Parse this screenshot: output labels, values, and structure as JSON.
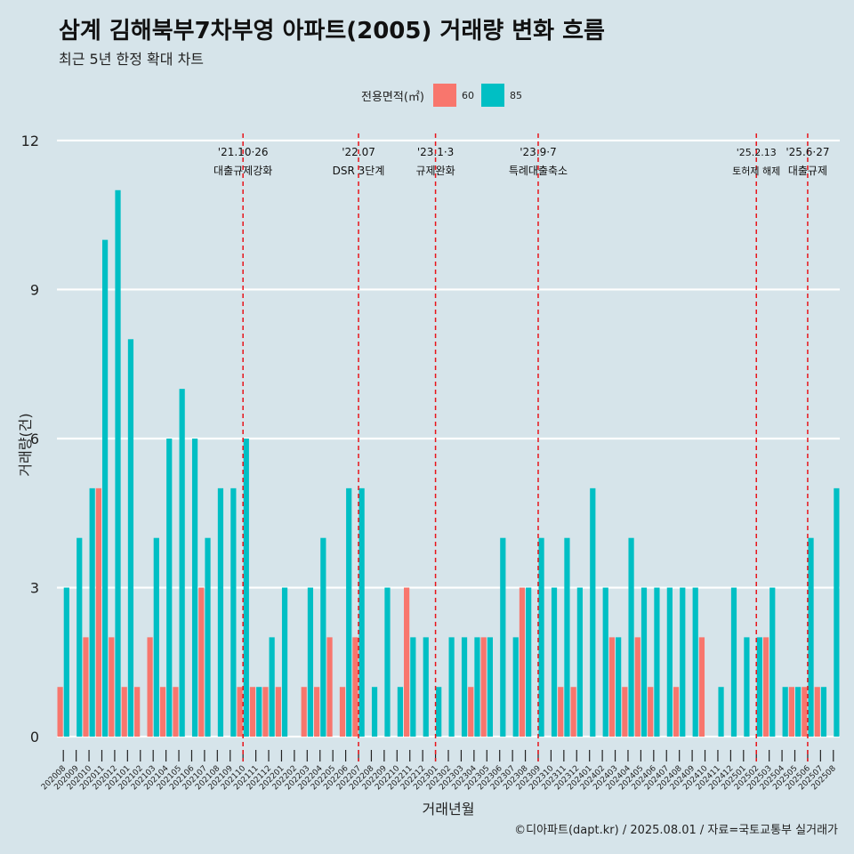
{
  "title": "삼계 김해북부7차부영 아파트(2005) 거래량 변화 흐름",
  "subtitle": "최근 5년 한정 확대 차트",
  "caption": "©디아파트(dapt.kr) / 2025.08.01 / 자료=국토교통부 실거래가",
  "legend": {
    "title": "전용면적(㎡)",
    "items": [
      {
        "label": "60",
        "color": "#f8766d"
      },
      {
        "label": "85",
        "color": "#00bfc4"
      }
    ]
  },
  "chart_data": {
    "type": "bar",
    "xlabel": "거래년월",
    "ylabel": "거래량(건)",
    "ylim": [
      -0.5,
      12.5
    ],
    "yticks": [
      0,
      3,
      6,
      9,
      12
    ],
    "grid": true,
    "legend_position": "top",
    "categories": [
      "202008",
      "202009",
      "202010",
      "202011",
      "202012",
      "202101",
      "202102",
      "202103",
      "202104",
      "202105",
      "202106",
      "202107",
      "202108",
      "202109",
      "202110",
      "202111",
      "202112",
      "202201",
      "202202",
      "202203",
      "202204",
      "202205",
      "202206",
      "202207",
      "202208",
      "202209",
      "202210",
      "202211",
      "202212",
      "202301",
      "202302",
      "202303",
      "202304",
      "202305",
      "202306",
      "202307",
      "202308",
      "202309",
      "202310",
      "202311",
      "202312",
      "202401",
      "202402",
      "202403",
      "202404",
      "202405",
      "202406",
      "202407",
      "202408",
      "202409",
      "202410",
      "202411",
      "202412",
      "202501",
      "202502",
      "202503",
      "202504",
      "202505",
      "202506",
      "202507",
      "202508"
    ],
    "series": [
      {
        "name": "60",
        "color": "#f8766d",
        "values": [
          1,
          0,
          2,
          5,
          2,
          1,
          1,
          2,
          1,
          1,
          0,
          3,
          0,
          0,
          1,
          1,
          1,
          1,
          0,
          1,
          1,
          2,
          1,
          2,
          0,
          0,
          0,
          3,
          0,
          0,
          0,
          0,
          1,
          2,
          0,
          0,
          3,
          0,
          0,
          1,
          1,
          0,
          0,
          2,
          1,
          2,
          1,
          0,
          1,
          0,
          2,
          0,
          0,
          0,
          0,
          2,
          0,
          1,
          1,
          1,
          0
        ]
      },
      {
        "name": "85",
        "color": "#00bfc4",
        "values": [
          3,
          4,
          5,
          10,
          11,
          8,
          0,
          4,
          6,
          7,
          6,
          4,
          5,
          5,
          6,
          1,
          2,
          3,
          0,
          3,
          4,
          0,
          5,
          5,
          1,
          3,
          1,
          2,
          2,
          1,
          2,
          2,
          2,
          2,
          4,
          2,
          3,
          4,
          3,
          4,
          3,
          5,
          3,
          2,
          4,
          3,
          3,
          3,
          3,
          3,
          0,
          1,
          3,
          2,
          2,
          3,
          1,
          1,
          4,
          1,
          5
        ]
      }
    ],
    "events": [
      {
        "position": "202110",
        "date": "'21.10·26",
        "label": "대출규제강화"
      },
      {
        "position": "202207",
        "date": "'22.07",
        "label": "DSR 3단계"
      },
      {
        "position": "202301",
        "date": "'23.1·3",
        "label": "규제완화"
      },
      {
        "position": "202309",
        "date": "'23.9·7",
        "label": "특례대출축소"
      },
      {
        "position": "202502",
        "date": "'25.2.13",
        "label": "토허제 해제"
      },
      {
        "position": "202506",
        "date": "'25.6·27",
        "label": "대출규제"
      }
    ]
  }
}
